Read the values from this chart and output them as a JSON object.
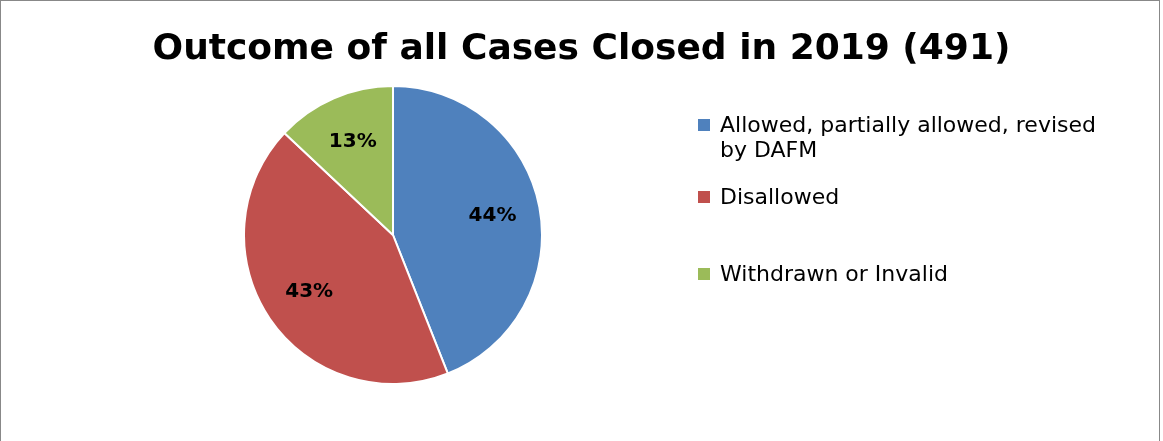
{
  "chart_data": {
    "type": "pie",
    "title": "Outcome of all Cases Closed in 2019 (491)",
    "categories": [
      "Allowed, partially allowed, revised by DAFM",
      "Disallowed",
      "Withdrawn or Invalid"
    ],
    "values": [
      44,
      43,
      13
    ],
    "colors": [
      "#4f81bd",
      "#c0504d",
      "#9bbb59"
    ],
    "value_labels": [
      "44%",
      "43%",
      "13%"
    ],
    "legend": "right"
  }
}
